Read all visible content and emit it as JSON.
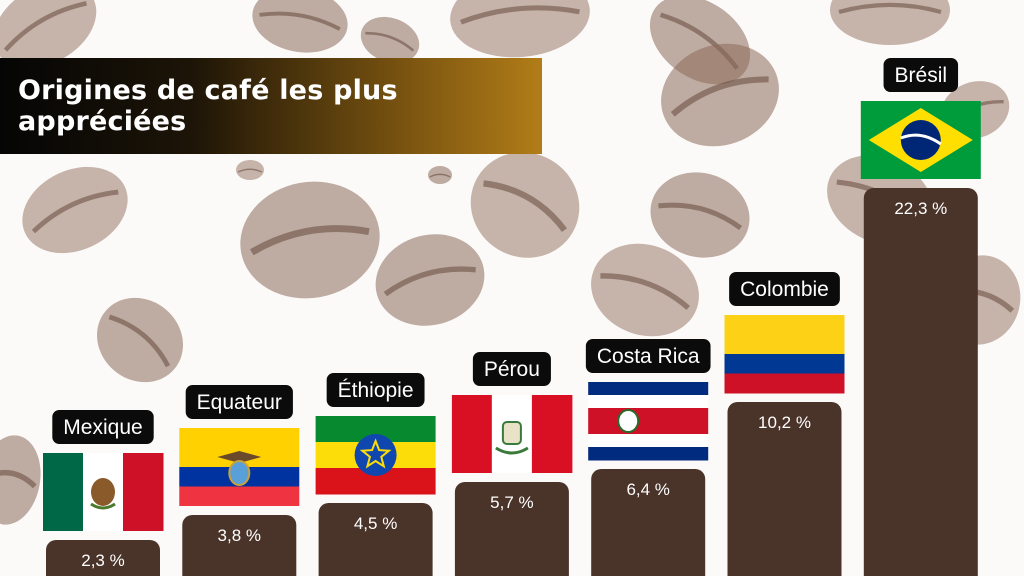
{
  "title": "Origines de café les plus appréciées",
  "colors": {
    "bar": "#4a3329",
    "label_bg": "#0b0b0b",
    "label_text": "#ffffff",
    "title_gradient_start": "#050505",
    "title_gradient_end": "#b27d18"
  },
  "chart_data": {
    "type": "bar",
    "title": "Origines de café les plus appréciées",
    "categories": [
      "Mexique",
      "Equateur",
      "Éthiopie",
      "Pérou",
      "Costa Rica",
      "Colombie",
      "Brésil"
    ],
    "values": [
      2.3,
      3.8,
      4.5,
      5.7,
      6.4,
      10.2,
      22.3
    ],
    "value_labels": [
      "2,3 %",
      "3,8 %",
      "4,5 %",
      "5,7 %",
      "6,4 %",
      "10,2  %",
      "22,3 %"
    ],
    "flags": [
      "mexico-flag",
      "ecuador-flag",
      "ethiopia-flag",
      "peru-flag",
      "costa-rica-flag",
      "colombia-flag",
      "brazil-flag"
    ],
    "xlabel": "",
    "ylabel": "",
    "grid": false,
    "legend": "none"
  }
}
